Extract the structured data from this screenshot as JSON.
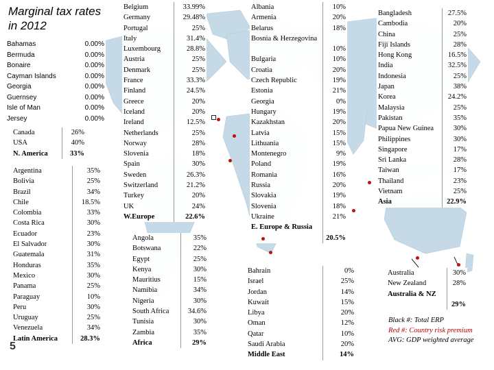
{
  "title": {
    "line1": "Marginal tax rates",
    "line2": "in 2012"
  },
  "page_number": "5",
  "legend": {
    "black": "Black #: Total ERP",
    "red": "Red #: Country risk premium",
    "avg": "AVG: GDP weighted average"
  },
  "colors": {
    "marker": "#c01010",
    "map": "#bcd3e3",
    "note_red": "#c00000"
  },
  "tables": {
    "offshore": {
      "rows": [
        {
          "name": "Bahamas",
          "value": "0.00%"
        },
        {
          "name": "Bermuda",
          "value": "0.00%"
        },
        {
          "name": "Bonaire",
          "value": "0.00%"
        },
        {
          "name": "Cayman Islands",
          "value": "0.00%"
        },
        {
          "name": "Georgia",
          "value": "0.00%"
        },
        {
          "name": "Guernsey",
          "value": "0.00%"
        },
        {
          "name": "Isle of Man",
          "value": "0.00%"
        },
        {
          "name": "Jersey",
          "value": "0.00%"
        }
      ]
    },
    "north_america": {
      "rows": [
        {
          "name": "Canada",
          "value": "26%"
        },
        {
          "name": "USA",
          "value": "40%"
        },
        {
          "name": "N. America",
          "value": "33%"
        }
      ]
    },
    "latin_america": {
      "rows": [
        {
          "name": "Argentina",
          "value": "35%"
        },
        {
          "name": "Bolivia",
          "value": "25%"
        },
        {
          "name": "Brazil",
          "value": "34%"
        },
        {
          "name": "Chile",
          "value": "18.5%"
        },
        {
          "name": "Colombia",
          "value": "33%"
        },
        {
          "name": "Costa Rica",
          "value": "30%"
        },
        {
          "name": "Ecuador",
          "value": "23%"
        },
        {
          "name": "El Salvador",
          "value": "30%"
        },
        {
          "name": "Guatemala",
          "value": "31%"
        },
        {
          "name": "Honduras",
          "value": "35%"
        },
        {
          "name": "Mexico",
          "value": "30%"
        },
        {
          "name": "Panama",
          "value": "25%"
        },
        {
          "name": "Paraguay",
          "value": "10%"
        },
        {
          "name": "Peru",
          "value": "30%"
        },
        {
          "name": "Uruguay",
          "value": "25%"
        },
        {
          "name": "Venezuela",
          "value": "34%"
        },
        {
          "name": "Latin America",
          "value": "28.3%"
        }
      ]
    },
    "western_europe": {
      "rows": [
        {
          "name": "Belgium",
          "value": "33.99%"
        },
        {
          "name": "Germany",
          "value": "29.48%"
        },
        {
          "name": "Portugal",
          "value": "25%"
        },
        {
          "name": "Italy",
          "value": "31.4%"
        },
        {
          "name": "Luxembourg",
          "value": "28.8%"
        },
        {
          "name": "Austria",
          "value": "25%"
        },
        {
          "name": "Denmark",
          "value": "25%"
        },
        {
          "name": "France",
          "value": "33.3%"
        },
        {
          "name": "Finland",
          "value": "24.5%"
        },
        {
          "name": "Greece",
          "value": "20%"
        },
        {
          "name": "Iceland",
          "value": "20%"
        },
        {
          "name": "Ireland",
          "value": "12.5%"
        },
        {
          "name": "Netherlands",
          "value": "25%"
        },
        {
          "name": "Norway",
          "value": "28%"
        },
        {
          "name": "Slovenia",
          "value": "18%"
        },
        {
          "name": "Spain",
          "value": "30%"
        },
        {
          "name": "Sweden",
          "value": "26.3%"
        },
        {
          "name": "Switzerland",
          "value": "21.2%"
        },
        {
          "name": "Turkey",
          "value": "20%"
        },
        {
          "name": "UK",
          "value": "24%"
        },
        {
          "name": "W.Europe",
          "value": "22.6%"
        }
      ]
    },
    "africa": {
      "rows": [
        {
          "name": "Angola",
          "value": "35%"
        },
        {
          "name": "Botswana",
          "value": "22%"
        },
        {
          "name": "Egypt",
          "value": "25%"
        },
        {
          "name": "Kenya",
          "value": "30%"
        },
        {
          "name": "Mauritius",
          "value": "15%"
        },
        {
          "name": "Namibia",
          "value": "34%"
        },
        {
          "name": "Nigeria",
          "value": "30%"
        },
        {
          "name": "South Africa",
          "value": "34.6%"
        },
        {
          "name": "Tunisia",
          "value": "30%"
        },
        {
          "name": "Zambia",
          "value": "35%"
        },
        {
          "name": "Africa",
          "value": "29%"
        }
      ]
    },
    "eastern_europe": {
      "rows": [
        {
          "name": "Albania",
          "value": "10%"
        },
        {
          "name": "Armenia",
          "value": "20%"
        },
        {
          "name": "Belarus",
          "value": "18%"
        },
        {
          "name": "Bosnia & Herzegovina",
          "value": "10%"
        },
        {
          "name": "Bulgaria",
          "value": "10%"
        },
        {
          "name": "Croatia",
          "value": "20%"
        },
        {
          "name": "Czech Republic",
          "value": "19%"
        },
        {
          "name": "Estonia",
          "value": "21%"
        },
        {
          "name": "Georgia",
          "value": "0%"
        },
        {
          "name": "Hungary",
          "value": "19%"
        },
        {
          "name": "Kazakhstan",
          "value": "20%"
        },
        {
          "name": "Latvia",
          "value": "15%"
        },
        {
          "name": "Lithuania",
          "value": "15%"
        },
        {
          "name": "Montenegro",
          "value": "9%"
        },
        {
          "name": "Poland",
          "value": "19%"
        },
        {
          "name": "Romania",
          "value": "16%"
        },
        {
          "name": "Russia",
          "value": "20%"
        },
        {
          "name": "Slovakia",
          "value": "19%"
        },
        {
          "name": "Slovenia",
          "value": "18%"
        },
        {
          "name": "Ukraine",
          "value": "21%"
        },
        {
          "name": "E. Europe & Russia",
          "value": "20.5%"
        }
      ]
    },
    "middle_east": {
      "rows": [
        {
          "name": "Bahrain",
          "value": "0%"
        },
        {
          "name": "Israel",
          "value": "25%"
        },
        {
          "name": "Jordan",
          "value": "14%"
        },
        {
          "name": "Kuwait",
          "value": "15%"
        },
        {
          "name": "Libya",
          "value": "20%"
        },
        {
          "name": "Oman",
          "value": "12%"
        },
        {
          "name": "Qatar",
          "value": "10%"
        },
        {
          "name": "Saudi Arabia",
          "value": "20%"
        },
        {
          "name": "Middle East",
          "value": "14%"
        }
      ]
    },
    "asia": {
      "rows": [
        {
          "name": "Bangladesh",
          "value": "27.5%"
        },
        {
          "name": "Cambodia",
          "value": "20%"
        },
        {
          "name": "China",
          "value": "25%"
        },
        {
          "name": "Fiji Islands",
          "value": "28%"
        },
        {
          "name": "Hong Kong",
          "value": "16.5%"
        },
        {
          "name": "India",
          "value": "32.5%"
        },
        {
          "name": "Indonesia",
          "value": "25%"
        },
        {
          "name": "Japan",
          "value": "38%"
        },
        {
          "name": "Korea",
          "value": "24.2%"
        },
        {
          "name": "Malaysia",
          "value": "25%"
        },
        {
          "name": "Pakistan",
          "value": "35%"
        },
        {
          "name": "Papua New Guinea",
          "value": "30%"
        },
        {
          "name": "Philippines",
          "value": "30%"
        },
        {
          "name": "Singapore",
          "value": "17%"
        },
        {
          "name": "Sri Lanka",
          "value": "28%"
        },
        {
          "name": "Taiwan",
          "value": "17%"
        },
        {
          "name": "Thailand",
          "value": "23%"
        },
        {
          "name": "Vietnam",
          "value": "25%"
        },
        {
          "name": "Asia",
          "value": "22.9%"
        }
      ]
    },
    "australia": {
      "rows": [
        {
          "name": "Australia",
          "value": "30%"
        },
        {
          "name": "New Zealand",
          "value": "28%"
        },
        {
          "name": "Australia & NZ",
          "value": "29%"
        }
      ]
    }
  }
}
